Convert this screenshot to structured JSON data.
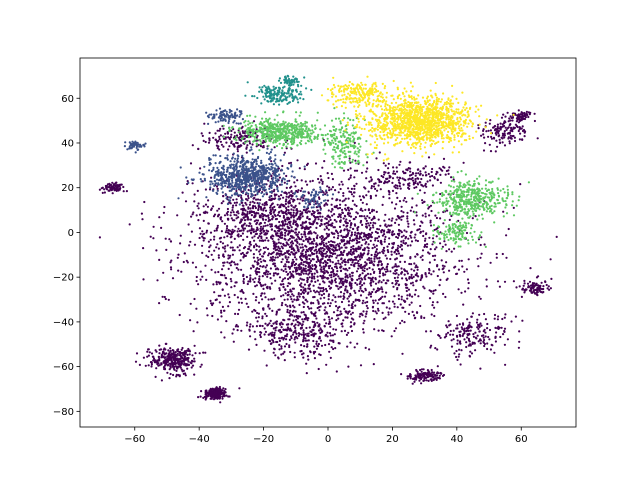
{
  "chart_data": {
    "type": "scatter",
    "title": "",
    "xlabel": "",
    "ylabel": "",
    "xlim": [
      -77,
      77
    ],
    "ylim": [
      -87,
      78
    ],
    "xticks": [
      -60,
      -40,
      -20,
      0,
      20,
      40,
      60
    ],
    "yticks": [
      -80,
      -60,
      -40,
      -20,
      0,
      20,
      40,
      60
    ],
    "xtick_labels": [
      "−60",
      "−40",
      "−20",
      "0",
      "20",
      "40",
      "60"
    ],
    "ytick_labels": [
      "−80",
      "−60",
      "−40",
      "−20",
      "0",
      "20",
      "40",
      "60"
    ],
    "grid": false,
    "legend": "none",
    "colormap": "viridis",
    "point_radius_note": "dense embedding scatter (t-SNE style)",
    "series": [
      {
        "color": "#440154",
        "clusters": [
          {
            "center": [
              0,
              -10
            ],
            "spread": [
              36,
              30
            ],
            "n": 2600
          },
          {
            "center": [
              -20,
              10
            ],
            "spread": [
              20,
              16
            ],
            "n": 500
          },
          {
            "center": [
              -48,
              -57
            ],
            "spread": [
              6,
              5
            ],
            "n": 320
          },
          {
            "center": [
              -35,
              -72
            ],
            "spread": [
              3,
              2
            ],
            "n": 260
          },
          {
            "center": [
              30,
              -64
            ],
            "spread": [
              5,
              2.5
            ],
            "n": 120
          },
          {
            "center": [
              -67,
              20
            ],
            "spread": [
              3,
              2
            ],
            "n": 80
          },
          {
            "center": [
              64,
              -25
            ],
            "spread": [
              4,
              3
            ],
            "n": 90
          },
          {
            "center": [
              -28,
              42
            ],
            "spread": [
              10,
              5
            ],
            "n": 160
          },
          {
            "center": [
              55,
              45
            ],
            "spread": [
              6,
              6
            ],
            "n": 140
          },
          {
            "center": [
              60,
              52
            ],
            "spread": [
              3,
              2
            ],
            "n": 60
          },
          {
            "center": [
              25,
              25
            ],
            "spread": [
              12,
              6
            ],
            "n": 160
          },
          {
            "center": [
              -10,
              -45
            ],
            "spread": [
              15,
              10
            ],
            "n": 300
          },
          {
            "center": [
              45,
              -45
            ],
            "spread": [
              12,
              8
            ],
            "n": 180
          }
        ]
      },
      {
        "color": "#3b528b",
        "clusters": [
          {
            "center": [
              -25,
              25
            ],
            "spread": [
              11,
              8
            ],
            "n": 700
          },
          {
            "center": [
              -60,
              39
            ],
            "spread": [
              3,
              2
            ],
            "n": 50
          },
          {
            "center": [
              -32,
              52
            ],
            "spread": [
              5,
              3
            ],
            "n": 90
          },
          {
            "center": [
              -5,
              15
            ],
            "spread": [
              5,
              4
            ],
            "n": 60
          }
        ]
      },
      {
        "color": "#21918c",
        "clusters": [
          {
            "center": [
              -15,
              62
            ],
            "spread": [
              7,
              4
            ],
            "n": 180
          },
          {
            "center": [
              -12,
              68
            ],
            "spread": [
              3,
              2
            ],
            "n": 50
          }
        ]
      },
      {
        "color": "#5ec962",
        "clusters": [
          {
            "center": [
              -15,
              45
            ],
            "spread": [
              11,
              5
            ],
            "n": 520
          },
          {
            "center": [
              5,
              40
            ],
            "spread": [
              6,
              10
            ],
            "n": 180
          },
          {
            "center": [
              45,
              15
            ],
            "spread": [
              10,
              7
            ],
            "n": 420
          },
          {
            "center": [
              40,
              0
            ],
            "spread": [
              6,
              5
            ],
            "n": 120
          }
        ]
      },
      {
        "color": "#fde725",
        "clusters": [
          {
            "center": [
              28,
              50
            ],
            "spread": [
              14,
              10
            ],
            "n": 1300
          },
          {
            "center": [
              10,
              62
            ],
            "spread": [
              8,
              5
            ],
            "n": 200
          }
        ]
      }
    ]
  }
}
